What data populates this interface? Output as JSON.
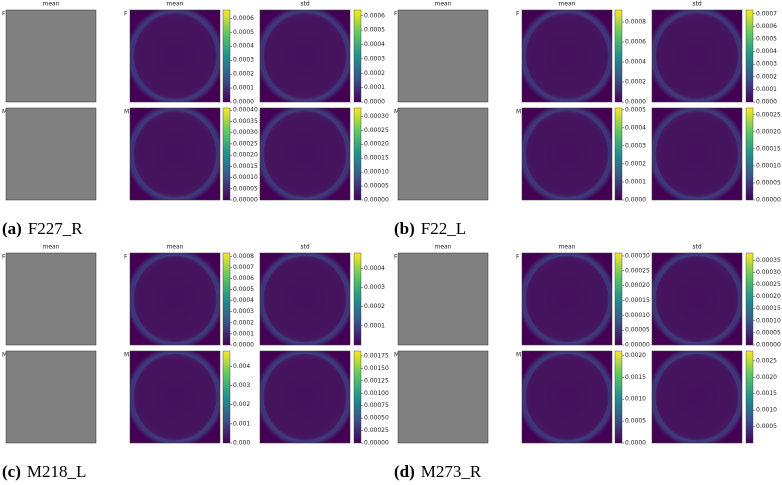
{
  "panels": [
    {
      "label": "(a)",
      "name": "F227_R",
      "column_titles": [
        "mean",
        "mean",
        "std"
      ],
      "rows": [
        {
          "label": "F",
          "colorbars": [
            {
              "lim": [
                0,
                0.00066
              ],
              "ticks": [
                {
                  "value": 0,
                  "label": "0.0000"
                },
                0.0001,
                0.0002,
                0.0003,
                0.0004,
                0.0005,
                0.0006
              ]
            },
            {
              "lim": [
                0,
                0.00064
              ],
              "ticks": [
                {
                  "value": 0,
                  "label": "0.0000"
                },
                0.0001,
                0.0002,
                0.0003,
                0.0004,
                0.0005,
                0.0006
              ]
            }
          ]
        },
        {
          "label": "M",
          "colorbars": [
            {
              "lim": [
                0,
                0.00041
              ],
              "ticks": [
                {
                  "value": 0,
                  "label": "0.00000"
                },
                5e-05,
                {
                  "value": 0.0001,
                  "label": "0.00010"
                },
                0.00015,
                {
                  "value": 0.0002,
                  "label": "0.00020"
                },
                0.00025,
                {
                  "value": 0.0003,
                  "label": "0.00030"
                },
                0.00035,
                {
                  "value": 0.0004,
                  "label": "0.00040"
                }
              ]
            },
            {
              "lim": [
                0,
                0.00033
              ],
              "ticks": [
                {
                  "value": 0,
                  "label": "0.00000"
                },
                5e-05,
                {
                  "value": 0.0001,
                  "label": "0.00010"
                },
                0.00015,
                {
                  "value": 0.0002,
                  "label": "0.00020"
                },
                0.00025,
                {
                  "value": 0.0003,
                  "label": "0.00030"
                }
              ]
            }
          ]
        }
      ]
    },
    {
      "label": "(b)",
      "name": "F22_L",
      "column_titles": [
        "mean",
        "mean",
        "std"
      ],
      "rows": [
        {
          "label": "F",
          "colorbars": [
            {
              "lim": [
                0,
                0.00092
              ],
              "ticks": [
                {
                  "value": 0,
                  "label": "0.0000"
                },
                0.0002,
                0.0004,
                0.0006,
                0.0008
              ]
            },
            {
              "lim": [
                0,
                0.00073
              ],
              "ticks": [
                {
                  "value": 0,
                  "label": "0.0000"
                },
                0.0001,
                0.0002,
                0.0003,
                0.0004,
                0.0005,
                0.0006,
                0.0007
              ]
            }
          ]
        },
        {
          "label": "M",
          "colorbars": [
            {
              "lim": [
                0,
                0.00051
              ],
              "ticks": [
                {
                  "value": 0,
                  "label": "0.0000"
                },
                0.0001,
                0.0002,
                0.0003,
                0.0004,
                0.0005
              ]
            },
            {
              "lim": [
                0,
                0.00027
              ],
              "ticks": [
                {
                  "value": 0,
                  "label": "0.00000"
                },
                5e-05,
                {
                  "value": 0.0001,
                  "label": "0.00010"
                },
                0.00015,
                {
                  "value": 0.0002,
                  "label": "0.00020"
                },
                0.00025
              ]
            }
          ]
        }
      ]
    },
    {
      "label": "(c)",
      "name": "M218_L",
      "column_titles": [
        "mean",
        "mean",
        "std"
      ],
      "rows": [
        {
          "label": "F",
          "colorbars": [
            {
              "lim": [
                0,
                0.00083
              ],
              "ticks": [
                {
                  "value": 0,
                  "label": "0.0000"
                },
                0.0001,
                0.0002,
                0.0003,
                0.0004,
                0.0005,
                0.0006,
                0.0007,
                0.0008
              ]
            },
            {
              "lim": [
                0,
                0.00048
              ],
              "ticks": [
                0.0001,
                0.0002,
                0.0003,
                0.0004
              ]
            }
          ]
        },
        {
          "label": "M",
          "colorbars": [
            {
              "lim": [
                0,
                0.0048
              ],
              "ticks": [
                {
                  "value": 0,
                  "label": "0.000"
                },
                0.001,
                0.002,
                0.003,
                0.004
              ]
            },
            {
              "lim": [
                0,
                0.00185
              ],
              "ticks": [
                {
                  "value": 0,
                  "label": "0.00000"
                },
                0.00025,
                {
                  "value": 0.0005,
                  "label": "0.00050"
                },
                0.00075,
                {
                  "value": 0.001,
                  "label": "0.00100"
                },
                0.00125,
                {
                  "value": 0.0015,
                  "label": "0.00150"
                },
                0.00175
              ]
            }
          ]
        }
      ]
    },
    {
      "label": "(d)",
      "name": "M273_R",
      "column_titles": [
        "mean",
        "mean",
        "std"
      ],
      "rows": [
        {
          "label": "F",
          "colorbars": [
            {
              "lim": [
                0,
                0.00031
              ],
              "ticks": [
                {
                  "value": 0,
                  "label": "0.00000"
                },
                5e-05,
                {
                  "value": 0.0001,
                  "label": "0.00010"
                },
                0.00015,
                {
                  "value": 0.0002,
                  "label": "0.00020"
                },
                0.00025,
                {
                  "value": 0.0003,
                  "label": "0.00030"
                }
              ]
            },
            {
              "lim": [
                0,
                0.00038
              ],
              "ticks": [
                {
                  "value": 0,
                  "label": "0.00000"
                },
                5e-05,
                {
                  "value": 0.0001,
                  "label": "0.00010"
                },
                0.00015,
                {
                  "value": 0.0002,
                  "label": "0.00020"
                },
                0.00025,
                {
                  "value": 0.0003,
                  "label": "0.00030"
                },
                0.00035
              ]
            }
          ]
        },
        {
          "label": "M",
          "colorbars": [
            {
              "lim": [
                0,
                0.0021
              ],
              "ticks": [
                {
                  "value": 0,
                  "label": "0.0000"
                },
                0.0005,
                {
                  "value": 0.001,
                  "label": "0.0010"
                },
                0.0015,
                {
                  "value": 0.002,
                  "label": "0.0020"
                }
              ]
            },
            {
              "lim": [
                0,
                0.0028
              ],
              "ticks": [
                0.0005,
                {
                  "value": 0.001,
                  "label": "0.0010"
                },
                0.0015,
                {
                  "value": 0.002,
                  "label": "0.0020"
                },
                0.0025
              ]
            }
          ]
        }
      ]
    }
  ]
}
